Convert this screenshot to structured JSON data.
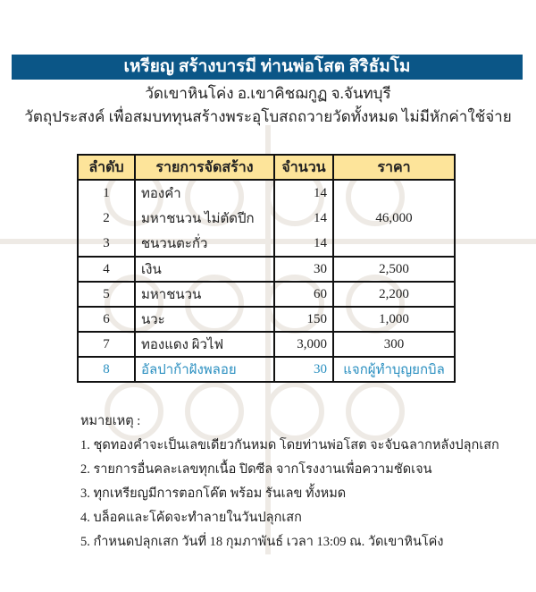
{
  "header": {
    "title": "เหรียญ สร้างบารมี ท่านพ่อโสต สิริธัมโม",
    "temple": "วัดเขาหินโค่ง อ.เขาคิชฌกูฏ จ.จันทบุรี",
    "purpose": "วัตถุประสงค์ เพื่อสมบททุนสร้างพระอุโบสถถวายวัดทั้งหมด ไม่มีหักค่าใช้จ่าย"
  },
  "table": {
    "columns": [
      "ลำดับ",
      "รายการจัดสร้าง",
      "จำนวน",
      "ราคา"
    ],
    "group_price": "46,000",
    "rows": [
      {
        "no": "1",
        "item": "ทองคำ",
        "qty": "14"
      },
      {
        "no": "2",
        "item": "มหาชนวน ไม่ตัดปีก",
        "qty": "14"
      },
      {
        "no": "3",
        "item": "ชนวนตะกั่ว",
        "qty": "14"
      },
      {
        "no": "4",
        "item": "เงิน",
        "qty": "30",
        "price": "2,500"
      },
      {
        "no": "5",
        "item": "มหาชนวน",
        "qty": "60",
        "price": "2,200"
      },
      {
        "no": "6",
        "item": "นวะ",
        "qty": "150",
        "price": "1,000"
      },
      {
        "no": "7",
        "item": "ทองแดง ผิวไฟ",
        "qty": "3,000",
        "price": "300"
      },
      {
        "no": "8",
        "item": "อัลปาก้าฝังพลอย",
        "qty": "30",
        "price": "แจกผู้ทำบุญยกบิล"
      }
    ],
    "highlight_color": "#2a8fc0",
    "header_color": "#fde49a"
  },
  "notes": {
    "label": "หมายเหตุ :",
    "items": [
      "1. ชุดทองคำจะเป็นเลขเดียวกันหมด โดยท่านพ่อโสต จะจับฉลากหลังปลุกเสก",
      "2. รายการอื่นคละเลขทุกเนื้อ ปิดซีล จากโรงงานเพื่อความชัดเจน",
      "3. ทุกเหรียญมีการตอกโค๊ต พร้อม รันเลข ทั้งหมด",
      "4. บล็อคและโค้ดจะทำลายในวันปลุกเสก",
      "5. กำหนดปลุกเสก วันที่ 18 กุมภาพันธ์ เวลา 13:09 ณ. วัดเขาหินโค่ง"
    ]
  },
  "banner_color": "#0b5687"
}
